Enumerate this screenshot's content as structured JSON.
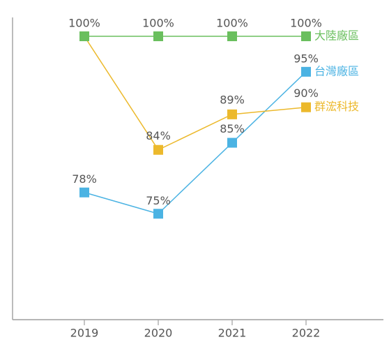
{
  "chart_data": {
    "type": "line",
    "title": "",
    "xlabel": "",
    "ylabel": "",
    "categories": [
      "2019",
      "2020",
      "2021",
      "2022"
    ],
    "ylim": [
      40,
      108
    ],
    "grid": false,
    "legend": "end-of-line labels",
    "series": [
      {
        "name": "大陸廠區",
        "color": "#6abf5e",
        "values": [
          100,
          100,
          100,
          100
        ],
        "labels": [
          "100%",
          "100%",
          "100%",
          "100%"
        ]
      },
      {
        "name": "台灣廠區",
        "color": "#4bb3e3",
        "values": [
          78,
          75,
          85,
          95
        ],
        "labels": [
          "78%",
          "75%",
          "85%",
          "95%"
        ]
      },
      {
        "name": "群浤科技",
        "color": "#ecb92c",
        "values": [
          null,
          84,
          89,
          90
        ],
        "labels": [
          null,
          "84%",
          "89%",
          "90%"
        ],
        "start_value": 100
      }
    ]
  }
}
